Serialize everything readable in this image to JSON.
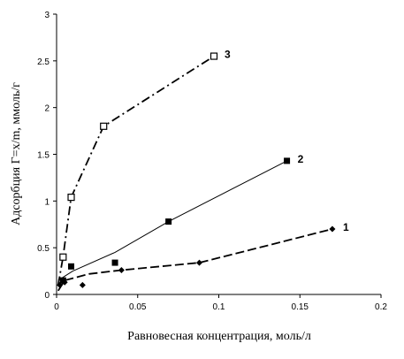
{
  "chart_data": {
    "type": "scatter",
    "xlabel": "Равновесная концентрация, моль/л",
    "ylabel": "Адсорбция Г=x/m, ммоль/г",
    "xlim": [
      0,
      0.2
    ],
    "ylim": [
      0,
      3
    ],
    "xticks": [
      "0",
      "0.05",
      "0.1",
      "0.15",
      "0.2"
    ],
    "yticks": [
      "0",
      "0.5",
      "1",
      "1.5",
      "2",
      "2.5",
      "3"
    ],
    "grid": false,
    "series": [
      {
        "name": "1",
        "marker": "diamond",
        "line_style": "long-dash",
        "points": [
          [
            0.002,
            0.1
          ],
          [
            0.005,
            0.13
          ],
          [
            0.016,
            0.1
          ],
          [
            0.04,
            0.26
          ],
          [
            0.088,
            0.34
          ],
          [
            0.17,
            0.7
          ]
        ],
        "fit": [
          [
            0.001,
            0.04
          ],
          [
            0.005,
            0.15
          ],
          [
            0.02,
            0.22
          ],
          [
            0.04,
            0.26
          ],
          [
            0.088,
            0.34
          ],
          [
            0.12,
            0.48
          ],
          [
            0.17,
            0.7
          ]
        ]
      },
      {
        "name": "2",
        "marker": "filled-square",
        "line_style": "solid",
        "points": [
          [
            0.004,
            0.15
          ],
          [
            0.009,
            0.3
          ],
          [
            0.036,
            0.34
          ],
          [
            0.069,
            0.78
          ],
          [
            0.142,
            1.43
          ]
        ],
        "fit": [
          [
            0.001,
            0.15
          ],
          [
            0.01,
            0.25
          ],
          [
            0.036,
            0.45
          ],
          [
            0.069,
            0.78
          ],
          [
            0.142,
            1.43
          ]
        ]
      },
      {
        "name": "3",
        "marker": "open-square",
        "line_style": "dash-dot",
        "points": [
          [
            0.004,
            0.4
          ],
          [
            0.009,
            1.04
          ],
          [
            0.029,
            1.8
          ],
          [
            0.097,
            2.55
          ]
        ],
        "fit": [
          [
            0.001,
            0.1
          ],
          [
            0.004,
            0.4
          ],
          [
            0.009,
            1.04
          ],
          [
            0.029,
            1.8
          ],
          [
            0.097,
            2.55
          ]
        ]
      }
    ]
  }
}
